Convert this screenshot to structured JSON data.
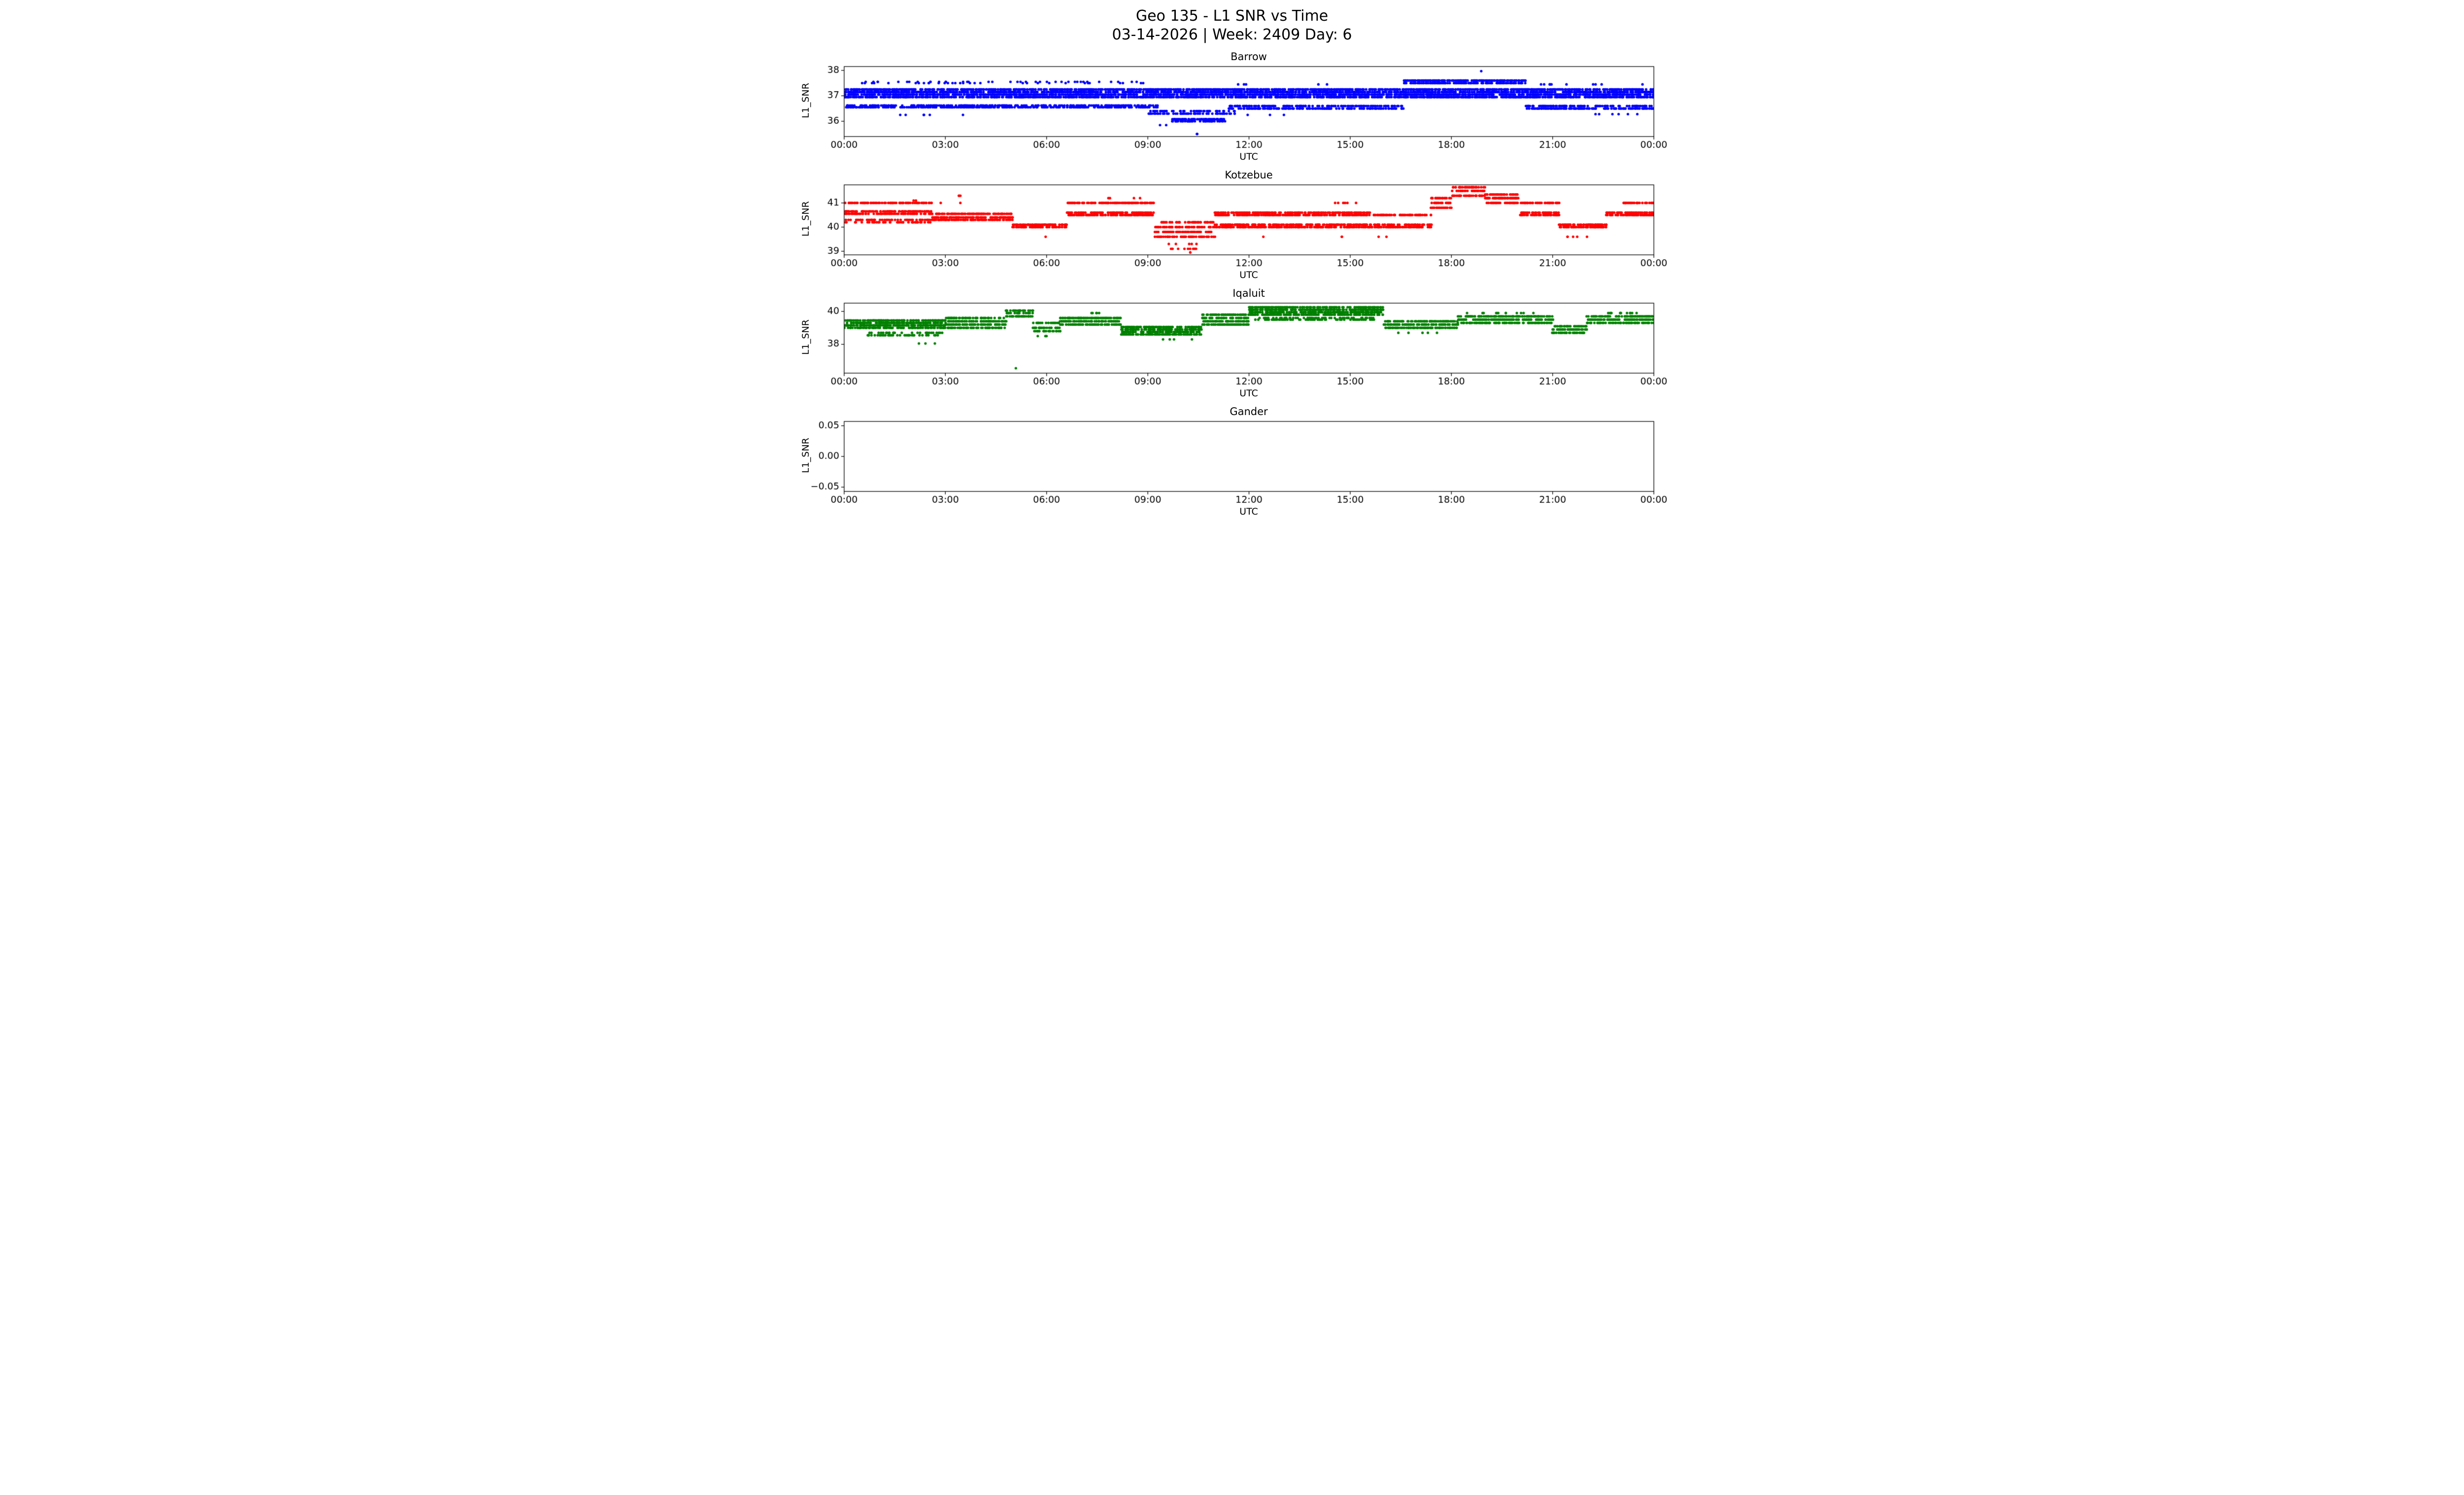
{
  "header": {
    "title": "Geo 135 - L1 SNR vs Time",
    "subtitle": "03-14-2026 | Week: 2409 Day: 6"
  },
  "chart_data": [
    {
      "type": "scatter",
      "station": "Barrow",
      "title": "Barrow",
      "xlabel": "UTC",
      "ylabel": "L1_SNR",
      "color": "#0000ff",
      "x_hours_range": [
        0,
        24
      ],
      "x_ticks": [
        {
          "h": 0,
          "label": "00:00"
        },
        {
          "h": 3,
          "label": "03:00"
        },
        {
          "h": 6,
          "label": "06:00"
        },
        {
          "h": 9,
          "label": "09:00"
        },
        {
          "h": 12,
          "label": "12:00"
        },
        {
          "h": 15,
          "label": "15:00"
        },
        {
          "h": 18,
          "label": "18:00"
        },
        {
          "h": 21,
          "label": "21:00"
        },
        {
          "h": 24,
          "label": "00:00"
        }
      ],
      "ylim": [
        35.4,
        38.15
      ],
      "y_ticks": [
        {
          "v": 36,
          "label": "36"
        },
        {
          "v": 37,
          "label": "37"
        },
        {
          "v": 38,
          "label": "38"
        }
      ],
      "point_step_minutes": 1,
      "bands": [
        {
          "t0": 0,
          "t1": 24,
          "levels": [
            36.95,
            37.05,
            37.15,
            37.25
          ],
          "p": 0.55
        },
        {
          "t0": 0,
          "t1": 9.3,
          "levels": [
            36.55,
            36.62
          ],
          "p": 0.4
        },
        {
          "t0": 0.4,
          "t1": 9.0,
          "levels": [
            37.5,
            37.55
          ],
          "p": 0.06
        },
        {
          "t0": 1.6,
          "t1": 4.2,
          "levels": [
            36.25
          ],
          "p": 0.04
        },
        {
          "t0": 9.0,
          "t1": 11.6,
          "levels": [
            36.3,
            36.4
          ],
          "p": 0.3
        },
        {
          "t0": 9.7,
          "t1": 11.3,
          "levels": [
            36.0,
            36.08
          ],
          "p": 0.45
        },
        {
          "t0": 9.3,
          "t1": 11.0,
          "levels": [
            35.85
          ],
          "p": 0.04
        },
        {
          "t0": 10.45,
          "t1": 10.47,
          "levels": [
            35.5
          ],
          "p": 0.9
        },
        {
          "t0": 11.4,
          "t1": 16.6,
          "levels": [
            36.5,
            36.6
          ],
          "p": 0.35
        },
        {
          "t0": 11.6,
          "t1": 14.5,
          "levels": [
            37.45
          ],
          "p": 0.05
        },
        {
          "t0": 11.8,
          "t1": 13.2,
          "levels": [
            36.25
          ],
          "p": 0.05
        },
        {
          "t0": 16.6,
          "t1": 20.2,
          "levels": [
            37.5,
            37.6
          ],
          "p": 0.55
        },
        {
          "t0": 17.8,
          "t1": 19.6,
          "levels": [
            37.97
          ],
          "p": 0.03
        },
        {
          "t0": 20.2,
          "t1": 24,
          "levels": [
            36.5,
            36.6
          ],
          "p": 0.4
        },
        {
          "t0": 21.8,
          "t1": 24,
          "levels": [
            36.28
          ],
          "p": 0.08
        },
        {
          "t0": 20.6,
          "t1": 23.9,
          "levels": [
            37.45
          ],
          "p": 0.04
        }
      ]
    },
    {
      "type": "scatter",
      "station": "Kotzebue",
      "title": "Kotzebue",
      "xlabel": "UTC",
      "ylabel": "L1_SNR",
      "color": "#ff0000",
      "x_hours_range": [
        0,
        24
      ],
      "x_ticks": [
        {
          "h": 0,
          "label": "00:00"
        },
        {
          "h": 3,
          "label": "03:00"
        },
        {
          "h": 6,
          "label": "06:00"
        },
        {
          "h": 9,
          "label": "09:00"
        },
        {
          "h": 12,
          "label": "12:00"
        },
        {
          "h": 15,
          "label": "15:00"
        },
        {
          "h": 18,
          "label": "18:00"
        },
        {
          "h": 21,
          "label": "21:00"
        },
        {
          "h": 24,
          "label": "00:00"
        }
      ],
      "ylim": [
        38.85,
        41.75
      ],
      "y_ticks": [
        {
          "v": 39,
          "label": "39"
        },
        {
          "v": 40,
          "label": "40"
        },
        {
          "v": 41,
          "label": "41"
        }
      ],
      "point_step_minutes": 1,
      "bands": [
        {
          "t0": 0,
          "t1": 2.6,
          "levels": [
            40.55,
            40.65,
            41.0
          ],
          "p": 0.5
        },
        {
          "t0": 0,
          "t1": 2.6,
          "levels": [
            40.2,
            40.3
          ],
          "p": 0.3
        },
        {
          "t0": 2.6,
          "t1": 5.0,
          "levels": [
            40.3,
            40.4,
            40.55
          ],
          "p": 0.5
        },
        {
          "t0": 2.0,
          "t1": 3.6,
          "levels": [
            41.0,
            41.1
          ],
          "p": 0.06
        },
        {
          "t0": 3.4,
          "t1": 3.45,
          "levels": [
            41.3
          ],
          "p": 0.7
        },
        {
          "t0": 5.0,
          "t1": 6.6,
          "levels": [
            40.0,
            40.1
          ],
          "p": 0.55
        },
        {
          "t0": 5.4,
          "t1": 6.2,
          "levels": [
            39.6
          ],
          "p": 0.1
        },
        {
          "t0": 6.6,
          "t1": 9.2,
          "levels": [
            40.5,
            40.6,
            41.0
          ],
          "p": 0.5
        },
        {
          "t0": 7.4,
          "t1": 9.0,
          "levels": [
            41.2
          ],
          "p": 0.06
        },
        {
          "t0": 9.2,
          "t1": 11.0,
          "levels": [
            39.6,
            39.8,
            40.0,
            40.2
          ],
          "p": 0.4
        },
        {
          "t0": 9.6,
          "t1": 10.6,
          "levels": [
            39.1,
            39.3
          ],
          "p": 0.12
        },
        {
          "t0": 10.25,
          "t1": 10.3,
          "levels": [
            38.95
          ],
          "p": 0.8
        },
        {
          "t0": 11.0,
          "t1": 15.6,
          "levels": [
            40.0,
            40.1,
            40.5,
            40.6
          ],
          "p": 0.5
        },
        {
          "t0": 12.0,
          "t1": 15.0,
          "levels": [
            39.6
          ],
          "p": 0.05
        },
        {
          "t0": 14.4,
          "t1": 15.2,
          "levels": [
            41.0
          ],
          "p": 0.1
        },
        {
          "t0": 15.6,
          "t1": 17.4,
          "levels": [
            40.0,
            40.1,
            40.5
          ],
          "p": 0.45
        },
        {
          "t0": 15.8,
          "t1": 16.4,
          "levels": [
            39.6
          ],
          "p": 0.1
        },
        {
          "t0": 17.4,
          "t1": 18.0,
          "levels": [
            40.8,
            41.0,
            41.2
          ],
          "p": 0.5
        },
        {
          "t0": 18.0,
          "t1": 19.0,
          "levels": [
            41.3,
            41.5,
            41.65
          ],
          "p": 0.5
        },
        {
          "t0": 19.0,
          "t1": 20.0,
          "levels": [
            41.0,
            41.2,
            41.35
          ],
          "p": 0.5
        },
        {
          "t0": 20.0,
          "t1": 21.2,
          "levels": [
            40.5,
            40.6,
            41.0
          ],
          "p": 0.45
        },
        {
          "t0": 21.2,
          "t1": 22.6,
          "levels": [
            40.0,
            40.1
          ],
          "p": 0.5
        },
        {
          "t0": 21.4,
          "t1": 22.3,
          "levels": [
            39.6
          ],
          "p": 0.1
        },
        {
          "t0": 22.6,
          "t1": 24,
          "levels": [
            40.5,
            40.6
          ],
          "p": 0.5
        },
        {
          "t0": 23.1,
          "t1": 24,
          "levels": [
            41.0
          ],
          "p": 0.45
        }
      ]
    },
    {
      "type": "scatter",
      "station": "Iqaluit",
      "title": "Iqaluit",
      "xlabel": "UTC",
      "ylabel": "L1_SNR",
      "color": "#008000",
      "x_hours_range": [
        0,
        24
      ],
      "x_ticks": [
        {
          "h": 0,
          "label": "00:00"
        },
        {
          "h": 3,
          "label": "03:00"
        },
        {
          "h": 6,
          "label": "06:00"
        },
        {
          "h": 9,
          "label": "09:00"
        },
        {
          "h": 12,
          "label": "12:00"
        },
        {
          "h": 15,
          "label": "15:00"
        },
        {
          "h": 18,
          "label": "18:00"
        },
        {
          "h": 21,
          "label": "21:00"
        },
        {
          "h": 24,
          "label": "00:00"
        }
      ],
      "ylim": [
        36.25,
        40.5
      ],
      "y_ticks": [
        {
          "v": 38,
          "label": "38"
        },
        {
          "v": 40,
          "label": "40"
        }
      ],
      "point_step_minutes": 1,
      "bands": [
        {
          "t0": 0,
          "t1": 3.0,
          "levels": [
            39.0,
            39.15,
            39.3,
            39.45
          ],
          "p": 0.5
        },
        {
          "t0": 0.5,
          "t1": 3.0,
          "levels": [
            38.55,
            38.7
          ],
          "p": 0.18
        },
        {
          "t0": 2.0,
          "t1": 2.8,
          "levels": [
            38.05
          ],
          "p": 0.06
        },
        {
          "t0": 3.0,
          "t1": 4.8,
          "levels": [
            39.0,
            39.2,
            39.4,
            39.6
          ],
          "p": 0.5
        },
        {
          "t0": 4.8,
          "t1": 5.6,
          "levels": [
            39.7,
            39.9,
            40.05
          ],
          "p": 0.5
        },
        {
          "t0": 5.08,
          "t1": 5.1,
          "levels": [
            36.55
          ],
          "p": 0.9
        },
        {
          "t0": 5.6,
          "t1": 6.4,
          "levels": [
            38.8,
            39.0,
            39.3
          ],
          "p": 0.45
        },
        {
          "t0": 5.7,
          "t1": 6.3,
          "levels": [
            38.5
          ],
          "p": 0.12
        },
        {
          "t0": 6.4,
          "t1": 8.2,
          "levels": [
            39.2,
            39.4,
            39.6
          ],
          "p": 0.5
        },
        {
          "t0": 7.2,
          "t1": 7.6,
          "levels": [
            39.9
          ],
          "p": 0.15
        },
        {
          "t0": 8.2,
          "t1": 10.6,
          "levels": [
            38.6,
            38.75,
            38.9,
            39.05
          ],
          "p": 0.5
        },
        {
          "t0": 9.4,
          "t1": 10.4,
          "levels": [
            38.3
          ],
          "p": 0.06
        },
        {
          "t0": 10.6,
          "t1": 12.0,
          "levels": [
            39.2,
            39.4,
            39.6,
            39.8
          ],
          "p": 0.5
        },
        {
          "t0": 12.0,
          "t1": 16.0,
          "levels": [
            39.8,
            39.95,
            40.1,
            40.25
          ],
          "p": 0.5
        },
        {
          "t0": 12.2,
          "t1": 15.8,
          "levels": [
            39.5,
            39.6
          ],
          "p": 0.25
        },
        {
          "t0": 16.0,
          "t1": 18.2,
          "levels": [
            39.0,
            39.2,
            39.4
          ],
          "p": 0.5
        },
        {
          "t0": 16.2,
          "t1": 17.8,
          "levels": [
            38.7
          ],
          "p": 0.08
        },
        {
          "t0": 18.2,
          "t1": 21.0,
          "levels": [
            39.3,
            39.5,
            39.7
          ],
          "p": 0.5
        },
        {
          "t0": 18.4,
          "t1": 20.6,
          "levels": [
            39.9
          ],
          "p": 0.1
        },
        {
          "t0": 21.0,
          "t1": 22.0,
          "levels": [
            38.7,
            38.9,
            39.1
          ],
          "p": 0.45
        },
        {
          "t0": 22.0,
          "t1": 24,
          "levels": [
            39.3,
            39.5,
            39.7
          ],
          "p": 0.5
        },
        {
          "t0": 22.6,
          "t1": 23.8,
          "levels": [
            39.9
          ],
          "p": 0.1
        }
      ]
    },
    {
      "type": "scatter",
      "station": "Gander",
      "title": "Gander",
      "xlabel": "UTC",
      "ylabel": "L1_SNR",
      "color": "#000000",
      "x_hours_range": [
        0,
        24
      ],
      "x_ticks": [
        {
          "h": 0,
          "label": "00:00"
        },
        {
          "h": 3,
          "label": "03:00"
        },
        {
          "h": 6,
          "label": "06:00"
        },
        {
          "h": 9,
          "label": "09:00"
        },
        {
          "h": 12,
          "label": "12:00"
        },
        {
          "h": 15,
          "label": "15:00"
        },
        {
          "h": 18,
          "label": "18:00"
        },
        {
          "h": 21,
          "label": "21:00"
        },
        {
          "h": 24,
          "label": "00:00"
        }
      ],
      "ylim": [
        -0.057,
        0.057
      ],
      "y_ticks": [
        {
          "v": -0.05,
          "label": "−0.05"
        },
        {
          "v": 0,
          "label": "0.00"
        },
        {
          "v": 0.05,
          "label": "0.05"
        }
      ],
      "point_step_minutes": 1,
      "bands": []
    }
  ]
}
